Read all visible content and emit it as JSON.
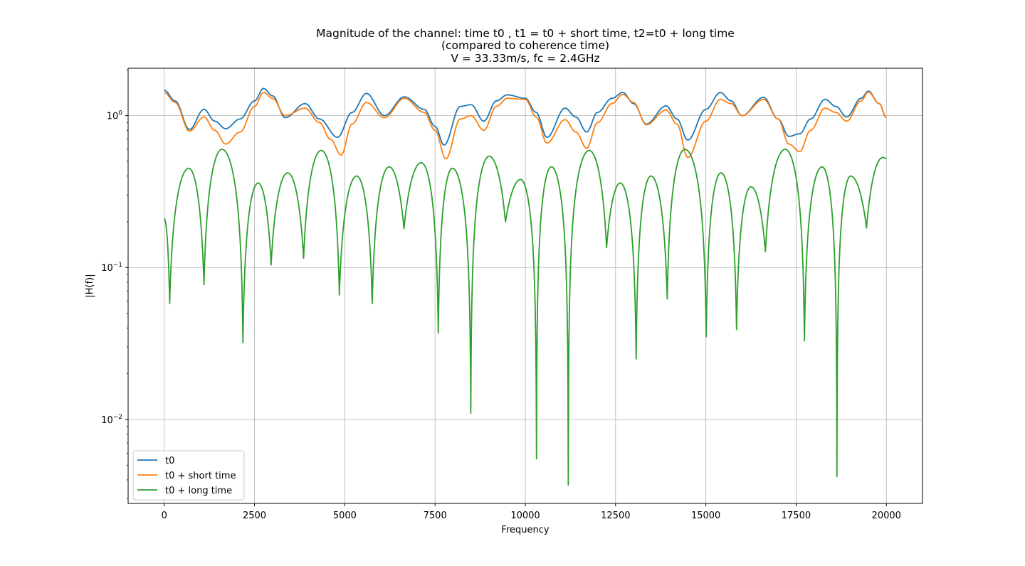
{
  "chart_data": {
    "type": "line",
    "title_lines": [
      "Magnitude of the channel: time t0 , t1 = t0 + short time, t2=t0 + long time",
      "(compared to coherence time)",
      "V = 33.33m/s, fc = 2.4GHz"
    ],
    "xlabel": "Frequency",
    "ylabel": "|H(f)|",
    "xlim": [
      -1000,
      21000
    ],
    "ylim": [
      0.0028,
      2.05
    ],
    "yscale": "log",
    "grid": true,
    "legend_position": "lower-left",
    "x_ticks": [
      0,
      2500,
      5000,
      7500,
      10000,
      12500,
      15000,
      17500,
      20000
    ],
    "x_tick_labels": [
      "0",
      "2500",
      "5000",
      "7500",
      "10000",
      "12500",
      "15000",
      "17500",
      "20000"
    ],
    "y_ticks": [
      0.01,
      0.1,
      1
    ],
    "y_tick_labels": [
      {
        "base": "10",
        "exp": "−2"
      },
      {
        "base": "10",
        "exp": "−1"
      },
      {
        "base": "10",
        "exp": "0"
      }
    ],
    "series": [
      {
        "name": "t0",
        "color": "#1f77b4",
        "points": [
          [
            0,
            1.47
          ],
          [
            300,
            1.25
          ],
          [
            700,
            0.81
          ],
          [
            1100,
            1.1
          ],
          [
            1400,
            0.92
          ],
          [
            1700,
            0.82
          ],
          [
            2100,
            0.95
          ],
          [
            2500,
            1.25
          ],
          [
            2750,
            1.51
          ],
          [
            3000,
            1.35
          ],
          [
            3350,
            0.97
          ],
          [
            3900,
            1.2
          ],
          [
            4300,
            0.95
          ],
          [
            4800,
            0.72
          ],
          [
            5200,
            1.05
          ],
          [
            5600,
            1.4
          ],
          [
            6100,
            1.0
          ],
          [
            6650,
            1.33
          ],
          [
            7200,
            1.1
          ],
          [
            7500,
            0.85
          ],
          [
            7750,
            0.64
          ],
          [
            8200,
            1.15
          ],
          [
            8500,
            1.18
          ],
          [
            8850,
            0.92
          ],
          [
            9200,
            1.25
          ],
          [
            9500,
            1.37
          ],
          [
            10000,
            1.3
          ],
          [
            10300,
            1.05
          ],
          [
            10600,
            0.72
          ],
          [
            11100,
            1.12
          ],
          [
            11400,
            0.98
          ],
          [
            11700,
            0.78
          ],
          [
            12000,
            1.05
          ],
          [
            12400,
            1.3
          ],
          [
            12700,
            1.42
          ],
          [
            13000,
            1.2
          ],
          [
            13350,
            0.88
          ],
          [
            13900,
            1.16
          ],
          [
            14200,
            0.95
          ],
          [
            14500,
            0.69
          ],
          [
            15000,
            1.1
          ],
          [
            15400,
            1.42
          ],
          [
            15700,
            1.25
          ],
          [
            16000,
            1.0
          ],
          [
            16600,
            1.32
          ],
          [
            17000,
            0.95
          ],
          [
            17300,
            0.73
          ],
          [
            17600,
            0.76
          ],
          [
            17900,
            0.95
          ],
          [
            18300,
            1.28
          ],
          [
            18600,
            1.15
          ],
          [
            18900,
            0.98
          ],
          [
            19300,
            1.3
          ],
          [
            19500,
            1.45
          ],
          [
            19800,
            1.2
          ],
          [
            20000,
            0.97
          ]
        ]
      },
      {
        "name": "t0 + short time",
        "color": "#ff7f0e",
        "points": [
          [
            0,
            1.42
          ],
          [
            300,
            1.22
          ],
          [
            700,
            0.79
          ],
          [
            1100,
            0.98
          ],
          [
            1400,
            0.8
          ],
          [
            1700,
            0.65
          ],
          [
            2100,
            0.78
          ],
          [
            2500,
            1.15
          ],
          [
            2750,
            1.42
          ],
          [
            3000,
            1.3
          ],
          [
            3350,
            1.0
          ],
          [
            3900,
            1.12
          ],
          [
            4300,
            0.9
          ],
          [
            4600,
            0.7
          ],
          [
            4900,
            0.55
          ],
          [
            5200,
            0.88
          ],
          [
            5600,
            1.22
          ],
          [
            6100,
            0.97
          ],
          [
            6650,
            1.3
          ],
          [
            7200,
            1.05
          ],
          [
            7500,
            0.8
          ],
          [
            7800,
            0.52
          ],
          [
            8200,
            0.95
          ],
          [
            8500,
            1.0
          ],
          [
            8850,
            0.8
          ],
          [
            9200,
            1.15
          ],
          [
            9500,
            1.3
          ],
          [
            10000,
            1.28
          ],
          [
            10300,
            0.98
          ],
          [
            10600,
            0.66
          ],
          [
            11100,
            0.94
          ],
          [
            11400,
            0.78
          ],
          [
            11700,
            0.61
          ],
          [
            12000,
            0.9
          ],
          [
            12400,
            1.2
          ],
          [
            12700,
            1.38
          ],
          [
            13000,
            1.22
          ],
          [
            13350,
            0.87
          ],
          [
            13900,
            1.09
          ],
          [
            14200,
            0.88
          ],
          [
            14500,
            0.53
          ],
          [
            15000,
            0.92
          ],
          [
            15400,
            1.28
          ],
          [
            15700,
            1.2
          ],
          [
            16000,
            1.0
          ],
          [
            16600,
            1.28
          ],
          [
            17000,
            0.95
          ],
          [
            17300,
            0.65
          ],
          [
            17600,
            0.58
          ],
          [
            17900,
            0.8
          ],
          [
            18300,
            1.12
          ],
          [
            18600,
            1.05
          ],
          [
            18900,
            0.92
          ],
          [
            19300,
            1.25
          ],
          [
            19500,
            1.43
          ],
          [
            19800,
            1.2
          ],
          [
            20000,
            0.97
          ]
        ]
      },
      {
        "name": "t0 + long time",
        "color": "#2ca02c",
        "lobes": [
          [
            0,
            0.21
          ],
          [
            150,
            0.058
          ],
          [
            680,
            0.45
          ],
          [
            1100,
            0.077
          ],
          [
            1600,
            0.6
          ],
          [
            2180,
            0.032
          ],
          [
            2600,
            0.36
          ],
          [
            2960,
            0.104
          ],
          [
            3420,
            0.42
          ],
          [
            3860,
            0.115
          ],
          [
            4350,
            0.59
          ],
          [
            4850,
            0.066
          ],
          [
            5330,
            0.4
          ],
          [
            5760,
            0.058
          ],
          [
            6230,
            0.46
          ],
          [
            6640,
            0.18
          ],
          [
            7120,
            0.49
          ],
          [
            7590,
            0.037
          ],
          [
            7980,
            0.45
          ],
          [
            8490,
            0.011
          ],
          [
            9000,
            0.54
          ],
          [
            9450,
            0.2
          ],
          [
            9870,
            0.38
          ],
          [
            10310,
            0.0055
          ],
          [
            10720,
            0.46
          ],
          [
            11190,
            0.0037
          ],
          [
            11770,
            0.59
          ],
          [
            12250,
            0.135
          ],
          [
            12630,
            0.36
          ],
          [
            13070,
            0.025
          ],
          [
            13480,
            0.4
          ],
          [
            13930,
            0.062
          ],
          [
            14420,
            0.6
          ],
          [
            15010,
            0.035
          ],
          [
            15420,
            0.42
          ],
          [
            15850,
            0.039
          ],
          [
            16250,
            0.34
          ],
          [
            16650,
            0.127
          ],
          [
            17200,
            0.6
          ],
          [
            17730,
            0.033
          ],
          [
            18220,
            0.46
          ],
          [
            18630,
            0.0042
          ],
          [
            19010,
            0.4
          ],
          [
            19450,
            0.182
          ],
          [
            19900,
            0.53
          ],
          [
            20000,
            0.52
          ]
        ]
      }
    ]
  }
}
